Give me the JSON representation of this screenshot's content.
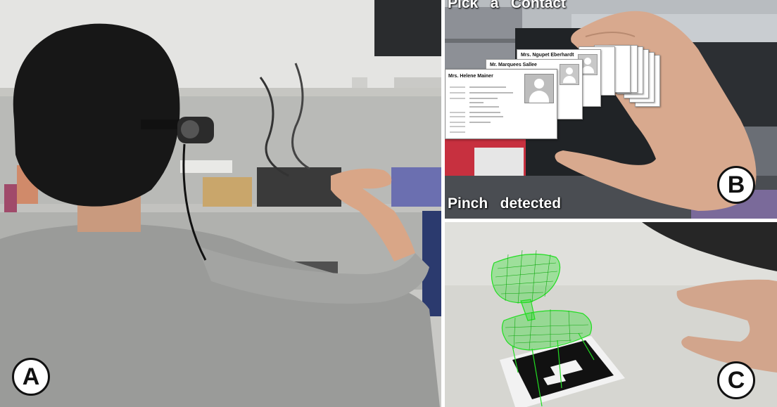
{
  "figure": {
    "panels": [
      {
        "id": "A",
        "label": "A",
        "description_icon": "photo-person-hmd"
      },
      {
        "id": "B",
        "label": "B",
        "description_icon": "photo-contact-cards"
      },
      {
        "id": "C",
        "label": "C",
        "description_icon": "photo-ar-chair"
      }
    ]
  },
  "panel_b": {
    "top_overlay": "Pick   a   Contact",
    "bottom_overlay": "Pinch   detected",
    "cards": [
      {
        "name": "Mrs. Helene Mainer"
      },
      {
        "name": "Mr. Marquees Sallee"
      },
      {
        "name": "Mrs. Ngupet Eberhardt"
      }
    ]
  },
  "colors": {
    "badge_fill": "#ffffff",
    "badge_stroke": "#111111",
    "overlay_text": "#ffffff",
    "wireframe": "#22dd22"
  }
}
